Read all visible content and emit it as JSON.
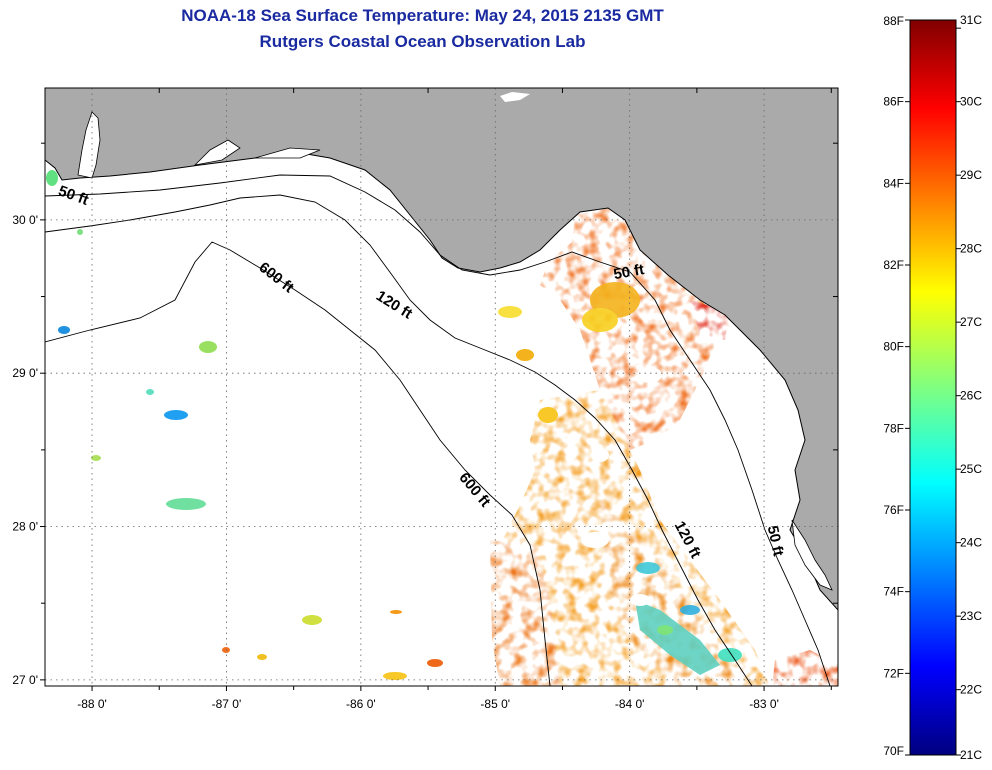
{
  "title": {
    "line1": "NOAA-18 Sea Surface Temperature:  May 24, 2015 2135 GMT",
    "line2": "Rutgers Coastal Ocean Observation Lab"
  },
  "map": {
    "lon_range": [
      -88.35,
      -82.45
    ],
    "lat_range": [
      26.96,
      30.86
    ],
    "lon_ticks": [
      {
        "value": -88,
        "label": "-88 0'"
      },
      {
        "value": -87,
        "label": "-87 0'"
      },
      {
        "value": -86,
        "label": "-86 0'"
      },
      {
        "value": -85,
        "label": "-85 0'"
      },
      {
        "value": -84,
        "label": "-84 0'"
      },
      {
        "value": -83,
        "label": "-83 0'"
      }
    ],
    "lat_ticks": [
      {
        "value": 30,
        "label": "30 0'"
      },
      {
        "value": 29,
        "label": "29 0'"
      },
      {
        "value": 28,
        "label": "28 0'"
      },
      {
        "value": 27,
        "label": "27 0'"
      }
    ],
    "grid": "dotted",
    "land_color": "#aaaaaa",
    "contour_labels": [
      {
        "text": "50 ft",
        "lon": -88.15,
        "lat": 30.13,
        "angle": 20
      },
      {
        "text": "600 ft",
        "lon": -86.65,
        "lat": 29.6,
        "angle": 38
      },
      {
        "text": "120 ft",
        "lon": -85.77,
        "lat": 29.42,
        "angle": 32
      },
      {
        "text": "50 ft",
        "lon": -84.0,
        "lat": 29.63,
        "angle": -10
      },
      {
        "text": "600 ft",
        "lon": -85.18,
        "lat": 28.22,
        "angle": 50
      },
      {
        "text": "120 ft",
        "lon": -83.6,
        "lat": 27.9,
        "angle": 62
      },
      {
        "text": "50 ft",
        "lon": -82.95,
        "lat": 27.9,
        "angle": 78
      }
    ]
  },
  "colorbar": {
    "f_labels": [
      "88F",
      "86F",
      "84F",
      "82F",
      "80F",
      "78F",
      "76F",
      "74F",
      "72F",
      "70F"
    ],
    "f_values": [
      88,
      86,
      84,
      82,
      80,
      78,
      76,
      74,
      72,
      70
    ],
    "c_labels": [
      "31C",
      "30C",
      "29C",
      "28C",
      "27C",
      "26C",
      "25C",
      "24C",
      "23C",
      "22C",
      "21C"
    ],
    "c_values": [
      31,
      30,
      29,
      28,
      27,
      26,
      25,
      24,
      23,
      22,
      21
    ],
    "range_f": [
      70,
      88
    ]
  }
}
